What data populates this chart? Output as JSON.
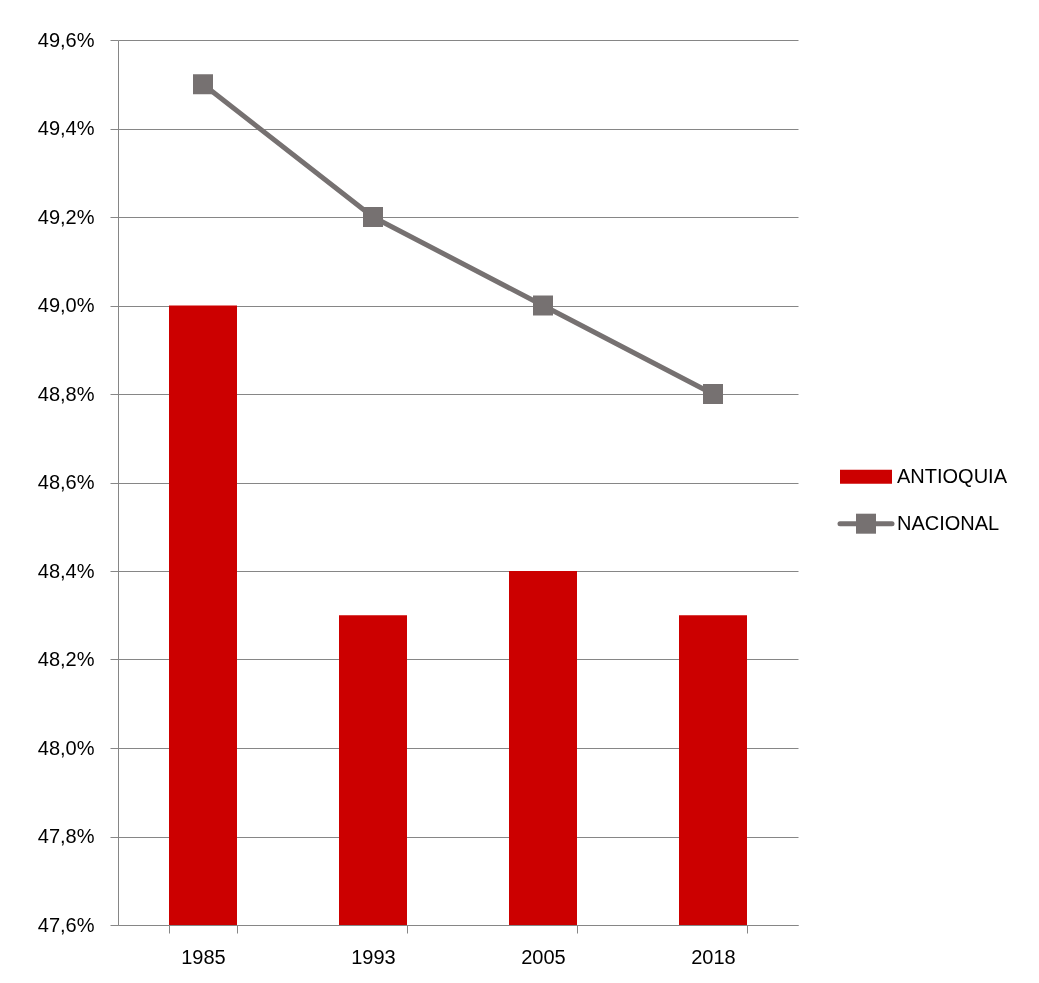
{
  "chart_data": {
    "type": "bar",
    "categories": [
      "1985",
      "1993",
      "2005",
      "2018"
    ],
    "series": [
      {
        "name": "ANTIOQUIA",
        "color": "#cc0000",
        "values": [
          49.0,
          48.3,
          48.4,
          48.3
        ]
      },
      {
        "name": "NACIONAL",
        "type": "line",
        "color": "#767171",
        "marker": "square",
        "values": [
          49.5,
          49.2,
          49.0,
          48.8
        ]
      }
    ],
    "ylim": [
      47.6,
      49.6
    ],
    "yticks": [
      {
        "value": 47.6,
        "label": "47,6%"
      },
      {
        "value": 47.8,
        "label": "47,8%"
      },
      {
        "value": 48.0,
        "label": "48,0%"
      },
      {
        "value": 48.2,
        "label": "48,2%"
      },
      {
        "value": 48.4,
        "label": "48,4%"
      },
      {
        "value": 48.6,
        "label": "48,6%"
      },
      {
        "value": 48.8,
        "label": "48,8%"
      },
      {
        "value": 49.0,
        "label": "49,0%"
      },
      {
        "value": 49.2,
        "label": "49,2%"
      },
      {
        "value": 49.4,
        "label": "49,4%"
      },
      {
        "value": 49.6,
        "label": "49,6%"
      }
    ],
    "grid": "y",
    "legend": "right"
  }
}
